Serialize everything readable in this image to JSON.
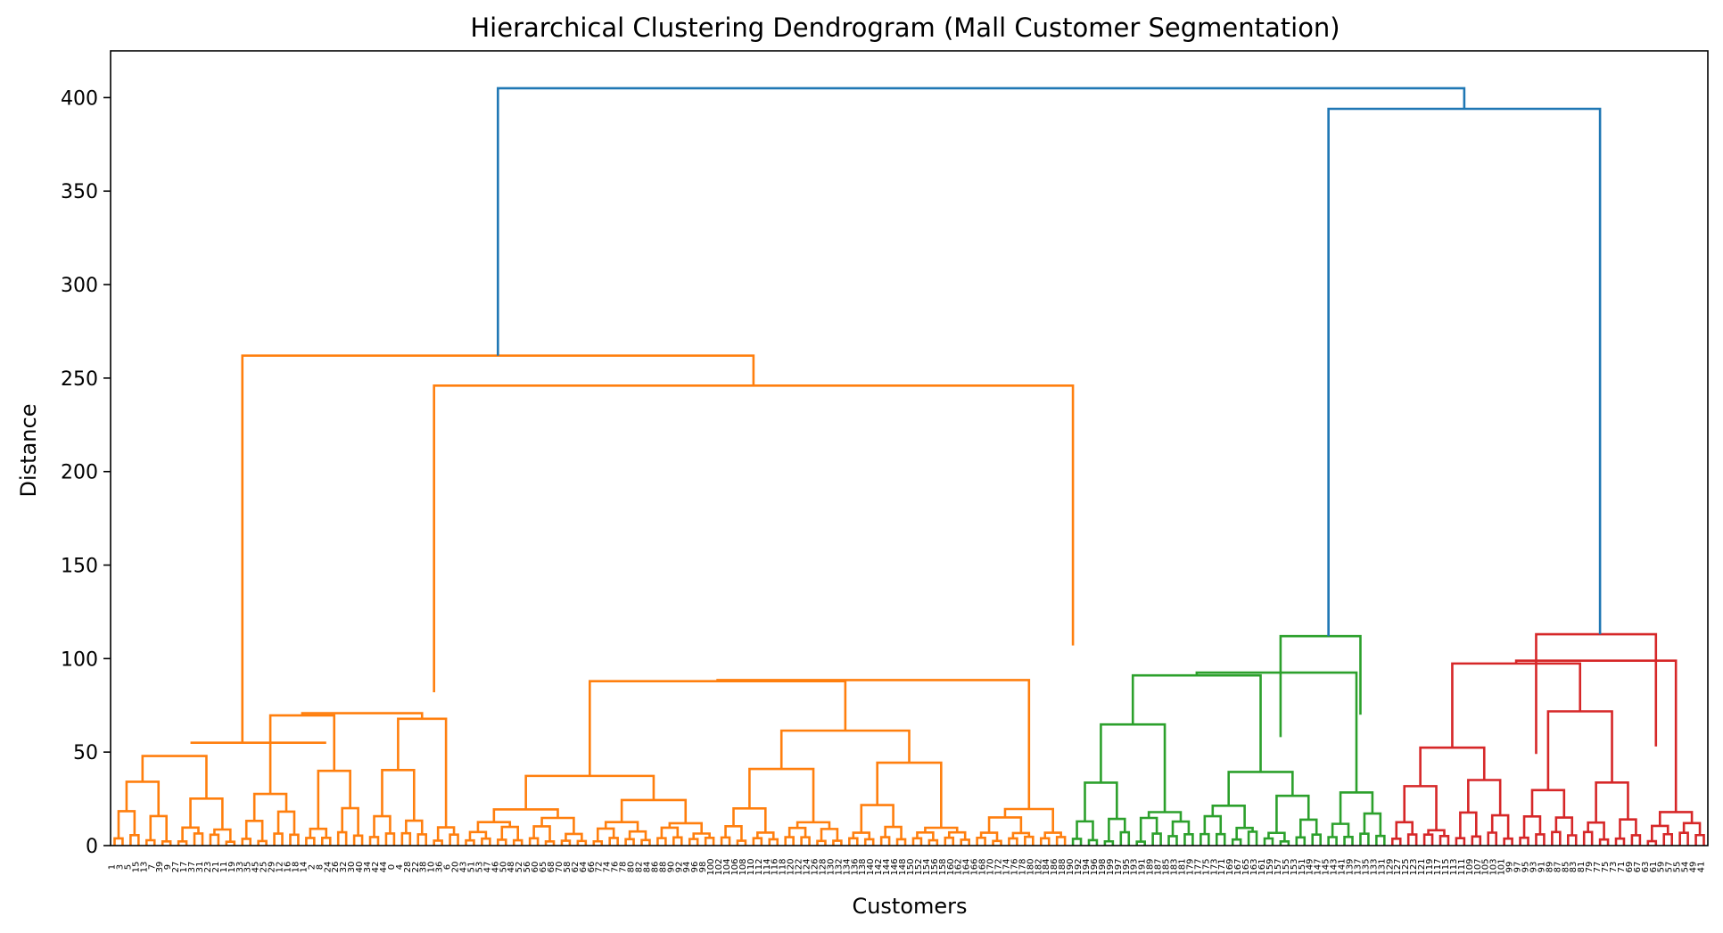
{
  "chart_data": {
    "type": "dendrogram",
    "title": "Hierarchical Clustering Dendrogram (Mall Customer Segmentation)",
    "xlabel": "Customers",
    "ylabel": "Distance",
    "ylim": [
      0,
      425
    ],
    "yticks": [
      0,
      50,
      100,
      150,
      200,
      250,
      300,
      350,
      400
    ],
    "grid": false,
    "leaf_count": 200,
    "colors": {
      "orange": "#ff7f0e",
      "green": "#2ca02c",
      "red": "#d62728",
      "blue": "#1f77b4"
    },
    "leaf_labels": [
      "1",
      "3",
      "5",
      "15",
      "13",
      "7",
      "39",
      "9",
      "27",
      "17",
      "37",
      "31",
      "23",
      "21",
      "11",
      "19",
      "33",
      "35",
      "45",
      "25",
      "29",
      "12",
      "16",
      "18",
      "14",
      "2",
      "8",
      "24",
      "26",
      "32",
      "30",
      "40",
      "34",
      "42",
      "44",
      "0",
      "4",
      "28",
      "22",
      "38",
      "10",
      "36",
      "6",
      "20",
      "43",
      "51",
      "53",
      "47",
      "46",
      "50",
      "48",
      "52",
      "56",
      "60",
      "65",
      "68",
      "70",
      "58",
      "62",
      "64",
      "66",
      "72",
      "74",
      "76",
      "78",
      "80",
      "82",
      "84",
      "86",
      "88",
      "90",
      "92",
      "94",
      "96",
      "98",
      "100",
      "102",
      "104",
      "106",
      "108",
      "110",
      "112",
      "114",
      "116",
      "118",
      "120",
      "122",
      "124",
      "126",
      "128",
      "130",
      "132",
      "134",
      "136",
      "138",
      "140",
      "142",
      "144",
      "146",
      "148",
      "150",
      "152",
      "154",
      "156",
      "158",
      "160",
      "162",
      "164",
      "166",
      "168",
      "170",
      "172",
      "174",
      "176",
      "178",
      "180",
      "182",
      "184",
      "186",
      "188",
      "190",
      "192",
      "194",
      "196",
      "198",
      "199",
      "197",
      "195",
      "193",
      "191",
      "189",
      "187",
      "185",
      "183",
      "181",
      "179",
      "177",
      "175",
      "173",
      "171",
      "169",
      "167",
      "165",
      "163",
      "161",
      "159",
      "157",
      "155",
      "153",
      "151",
      "149",
      "147",
      "145",
      "143",
      "141",
      "139",
      "137",
      "135",
      "133",
      "131",
      "129",
      "127",
      "125",
      "123",
      "121",
      "119",
      "117",
      "115",
      "113",
      "111",
      "109",
      "107",
      "105",
      "103",
      "101",
      "99",
      "97",
      "95",
      "93",
      "91",
      "89",
      "87",
      "85",
      "83",
      "81",
      "79",
      "77",
      "75",
      "73",
      "71",
      "69",
      "67",
      "63",
      "61",
      "59",
      "57",
      "55",
      "54",
      "49",
      "41"
    ],
    "top_links": [
      {
        "color": "orange",
        "left_x": 9.5,
        "left_h": 55,
        "right_x": 26.5,
        "right_h": 55,
        "height": 55
      },
      {
        "color": "orange",
        "left_x": 40,
        "left_h": 82,
        "right_x": 120,
        "right_h": 107,
        "height": 246
      },
      {
        "color": "orange",
        "left_x": 16,
        "left_h": 55,
        "right_x": 80,
        "right_h": 246,
        "height": 262
      },
      {
        "color": "green",
        "left_x": 146,
        "left_h": 58,
        "right_x": 156,
        "right_h": 70,
        "height": 112
      },
      {
        "color": "red",
        "left_x": 178,
        "left_h": 49,
        "right_x": 193,
        "right_h": 53,
        "height": 113
      },
      {
        "color": "blue",
        "left_x": 152,
        "left_h": 112,
        "right_x": 186,
        "right_h": 113,
        "height": 394
      },
      {
        "color": "blue",
        "left_x": 48,
        "left_h": 262,
        "right_x": 169,
        "right_h": 394,
        "height": 405
      }
    ]
  }
}
